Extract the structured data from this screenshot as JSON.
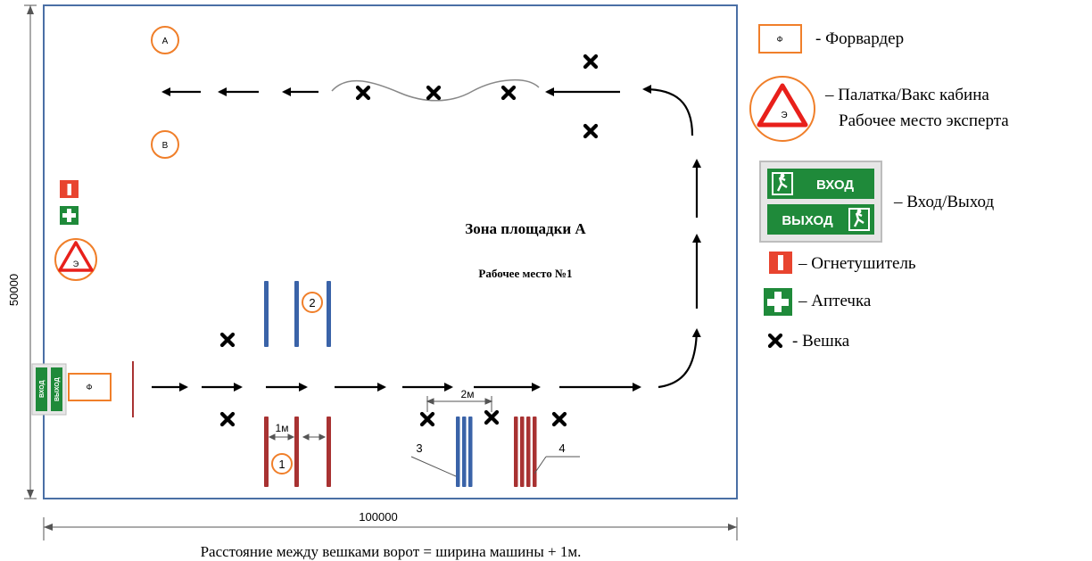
{
  "dimensions": {
    "height": "50000",
    "width": "100000"
  },
  "zone": {
    "title": "Зона площадки А",
    "subtitle": "Рабочее место №1"
  },
  "caption": "Расстояние между вешками ворот = ширина машины + 1м.",
  "markers": {
    "circle_a": "А",
    "circle_b": "В",
    "station_1": "1",
    "station_2": "2",
    "label_3": "3",
    "label_4": "4",
    "tent_letter": "Э",
    "forwarder_letter": "Ф"
  },
  "measures": {
    "gap_1m": "1м",
    "gap_2m": "2м"
  },
  "exit_sign": {
    "entry": "ВХОД",
    "exit": "ВЫХОД"
  },
  "legend": {
    "forwarder": "- Форвардер",
    "tent_line1": "– Палатка/Вакс кабина",
    "tent_line2": "Рабочее место эксперта",
    "entrance": "– Вход/Выход",
    "extinguisher": "– Огнетушитель",
    "first_aid": "– Аптечка",
    "stake": "- Вешка"
  },
  "colors": {
    "field_border": "#4a6fa5",
    "orange": "#f07f2a",
    "red_bar": "#a83232",
    "blue_bar": "#3a63a8",
    "green_sign": "#1f8a3a",
    "red_sign": "#e8442f",
    "triangle": "#e8201b"
  },
  "icons": [
    "stake-x-icon",
    "arrow-right-icon",
    "arrow-left-icon",
    "fire-extinguisher-icon",
    "first-aid-icon",
    "warning-triangle-icon",
    "exit-sign-icon"
  ]
}
